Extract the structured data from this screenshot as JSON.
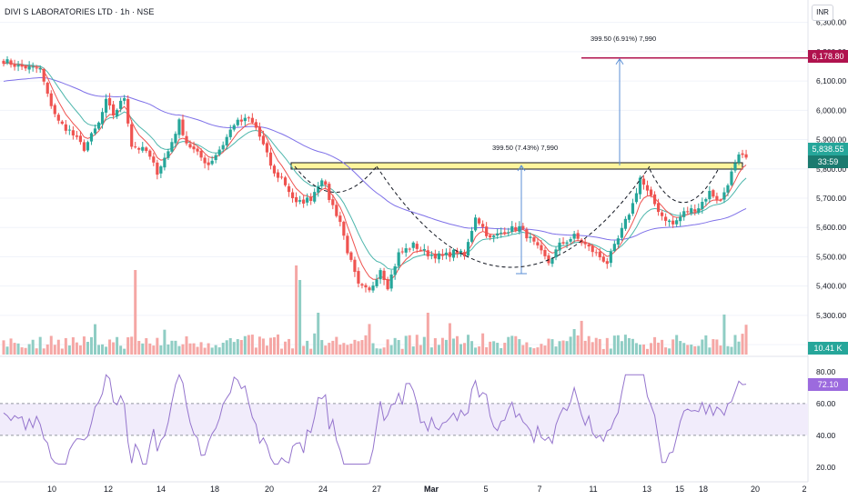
{
  "header": {
    "title": "DIVI S LABORATORIES LTD · 1h · NSE",
    "currency": "INR"
  },
  "price_axis": {
    "labels": [
      "6,300.00",
      "6,200.00",
      "6,100.00",
      "6,000.00",
      "5,900.00",
      "5,800.00",
      "5,700.00",
      "5,600.00",
      "5,500.00",
      "5,400.00",
      "5,300.00",
      "5,200.00"
    ],
    "values": [
      6300,
      6200,
      6100,
      6000,
      5900,
      5800,
      5700,
      5600,
      5500,
      5400,
      5300,
      5200
    ]
  },
  "rsi_axis": {
    "labels": [
      "80.00",
      "60.00",
      "40.00",
      "20.00"
    ],
    "values": [
      80,
      60,
      40,
      20
    ]
  },
  "time_axis": {
    "labels": [
      "10",
      "12",
      "14",
      "18",
      "20",
      "24",
      "27",
      "Mar",
      "5",
      "7",
      "11",
      "13",
      "15",
      "18",
      "20",
      "2"
    ]
  },
  "tags": {
    "target": "6,178.80",
    "last_price": "5,838.55",
    "countdown": "33:59",
    "volume": "10.41 K",
    "rsi": "72.10"
  },
  "annotations": {
    "target_measure": "399.50 (6.91%) 7,990",
    "cup_measure": "399.50 (7.43%) 7,990"
  },
  "colors": {
    "up": "#26a69a",
    "down": "#ef5350",
    "vol_up": "#8fcdc4",
    "vol_down": "#f5a7a5",
    "ema_fast": "#ef5350",
    "ema_slow": "#4db6ac",
    "ema_long": "#7e70e8",
    "target_line": "#b0124e",
    "rsi_line": "#9575cd",
    "rsi_band": "#f1ecfb",
    "breakout_zone": "#fff59d",
    "measure": "#5b8fd6",
    "last_tag": "#26a69a",
    "countdown_tag": "#1b7a6f",
    "rsi_tag": "#9c6ade"
  },
  "chart_data": {
    "type": "candlestick",
    "price_range": [
      5160,
      6330
    ],
    "rsi_range": [
      12,
      85
    ],
    "rsi_levels": [
      40,
      60
    ],
    "target_price": 6178.8,
    "breakout_zone": [
      5745,
      5770
    ],
    "last_price": 5838.55,
    "control_points": [
      [
        0,
        6170
      ],
      [
        4,
        6150
      ],
      [
        10,
        6140
      ],
      [
        12,
        6050
      ],
      [
        15,
        5960
      ],
      [
        18,
        5930
      ],
      [
        22,
        5870
      ],
      [
        26,
        5955
      ],
      [
        28,
        6030
      ],
      [
        30,
        5985
      ],
      [
        33,
        6045
      ],
      [
        35,
        5880
      ],
      [
        39,
        5860
      ],
      [
        42,
        5790
      ],
      [
        45,
        5860
      ],
      [
        48,
        5960
      ],
      [
        50,
        5890
      ],
      [
        53,
        5850
      ],
      [
        56,
        5815
      ],
      [
        60,
        5885
      ],
      [
        63,
        5955
      ],
      [
        67,
        5970
      ],
      [
        69,
        5940
      ],
      [
        71,
        5880
      ],
      [
        74,
        5780
      ],
      [
        76,
        5770
      ],
      [
        80,
        5680
      ],
      [
        84,
        5700
      ],
      [
        87,
        5770
      ],
      [
        89,
        5700
      ],
      [
        92,
        5620
      ],
      [
        94,
        5520
      ],
      [
        97,
        5400
      ],
      [
        100,
        5380
      ],
      [
        103,
        5460
      ],
      [
        105,
        5400
      ],
      [
        108,
        5510
      ],
      [
        112,
        5540
      ],
      [
        116,
        5510
      ],
      [
        120,
        5500
      ],
      [
        124,
        5520
      ],
      [
        126,
        5500
      ],
      [
        129,
        5640
      ],
      [
        133,
        5560
      ],
      [
        137,
        5590
      ],
      [
        141,
        5600
      ],
      [
        144,
        5560
      ],
      [
        149,
        5480
      ],
      [
        152,
        5540
      ],
      [
        156,
        5570
      ],
      [
        160,
        5530
      ],
      [
        165,
        5480
      ],
      [
        168,
        5560
      ],
      [
        172,
        5680
      ],
      [
        174,
        5770
      ],
      [
        176,
        5720
      ],
      [
        180,
        5640
      ],
      [
        183,
        5610
      ],
      [
        186,
        5650
      ],
      [
        190,
        5670
      ],
      [
        193,
        5720
      ],
      [
        196,
        5690
      ],
      [
        199,
        5785
      ],
      [
        201,
        5840
      ],
      [
        203,
        5838
      ]
    ]
  }
}
